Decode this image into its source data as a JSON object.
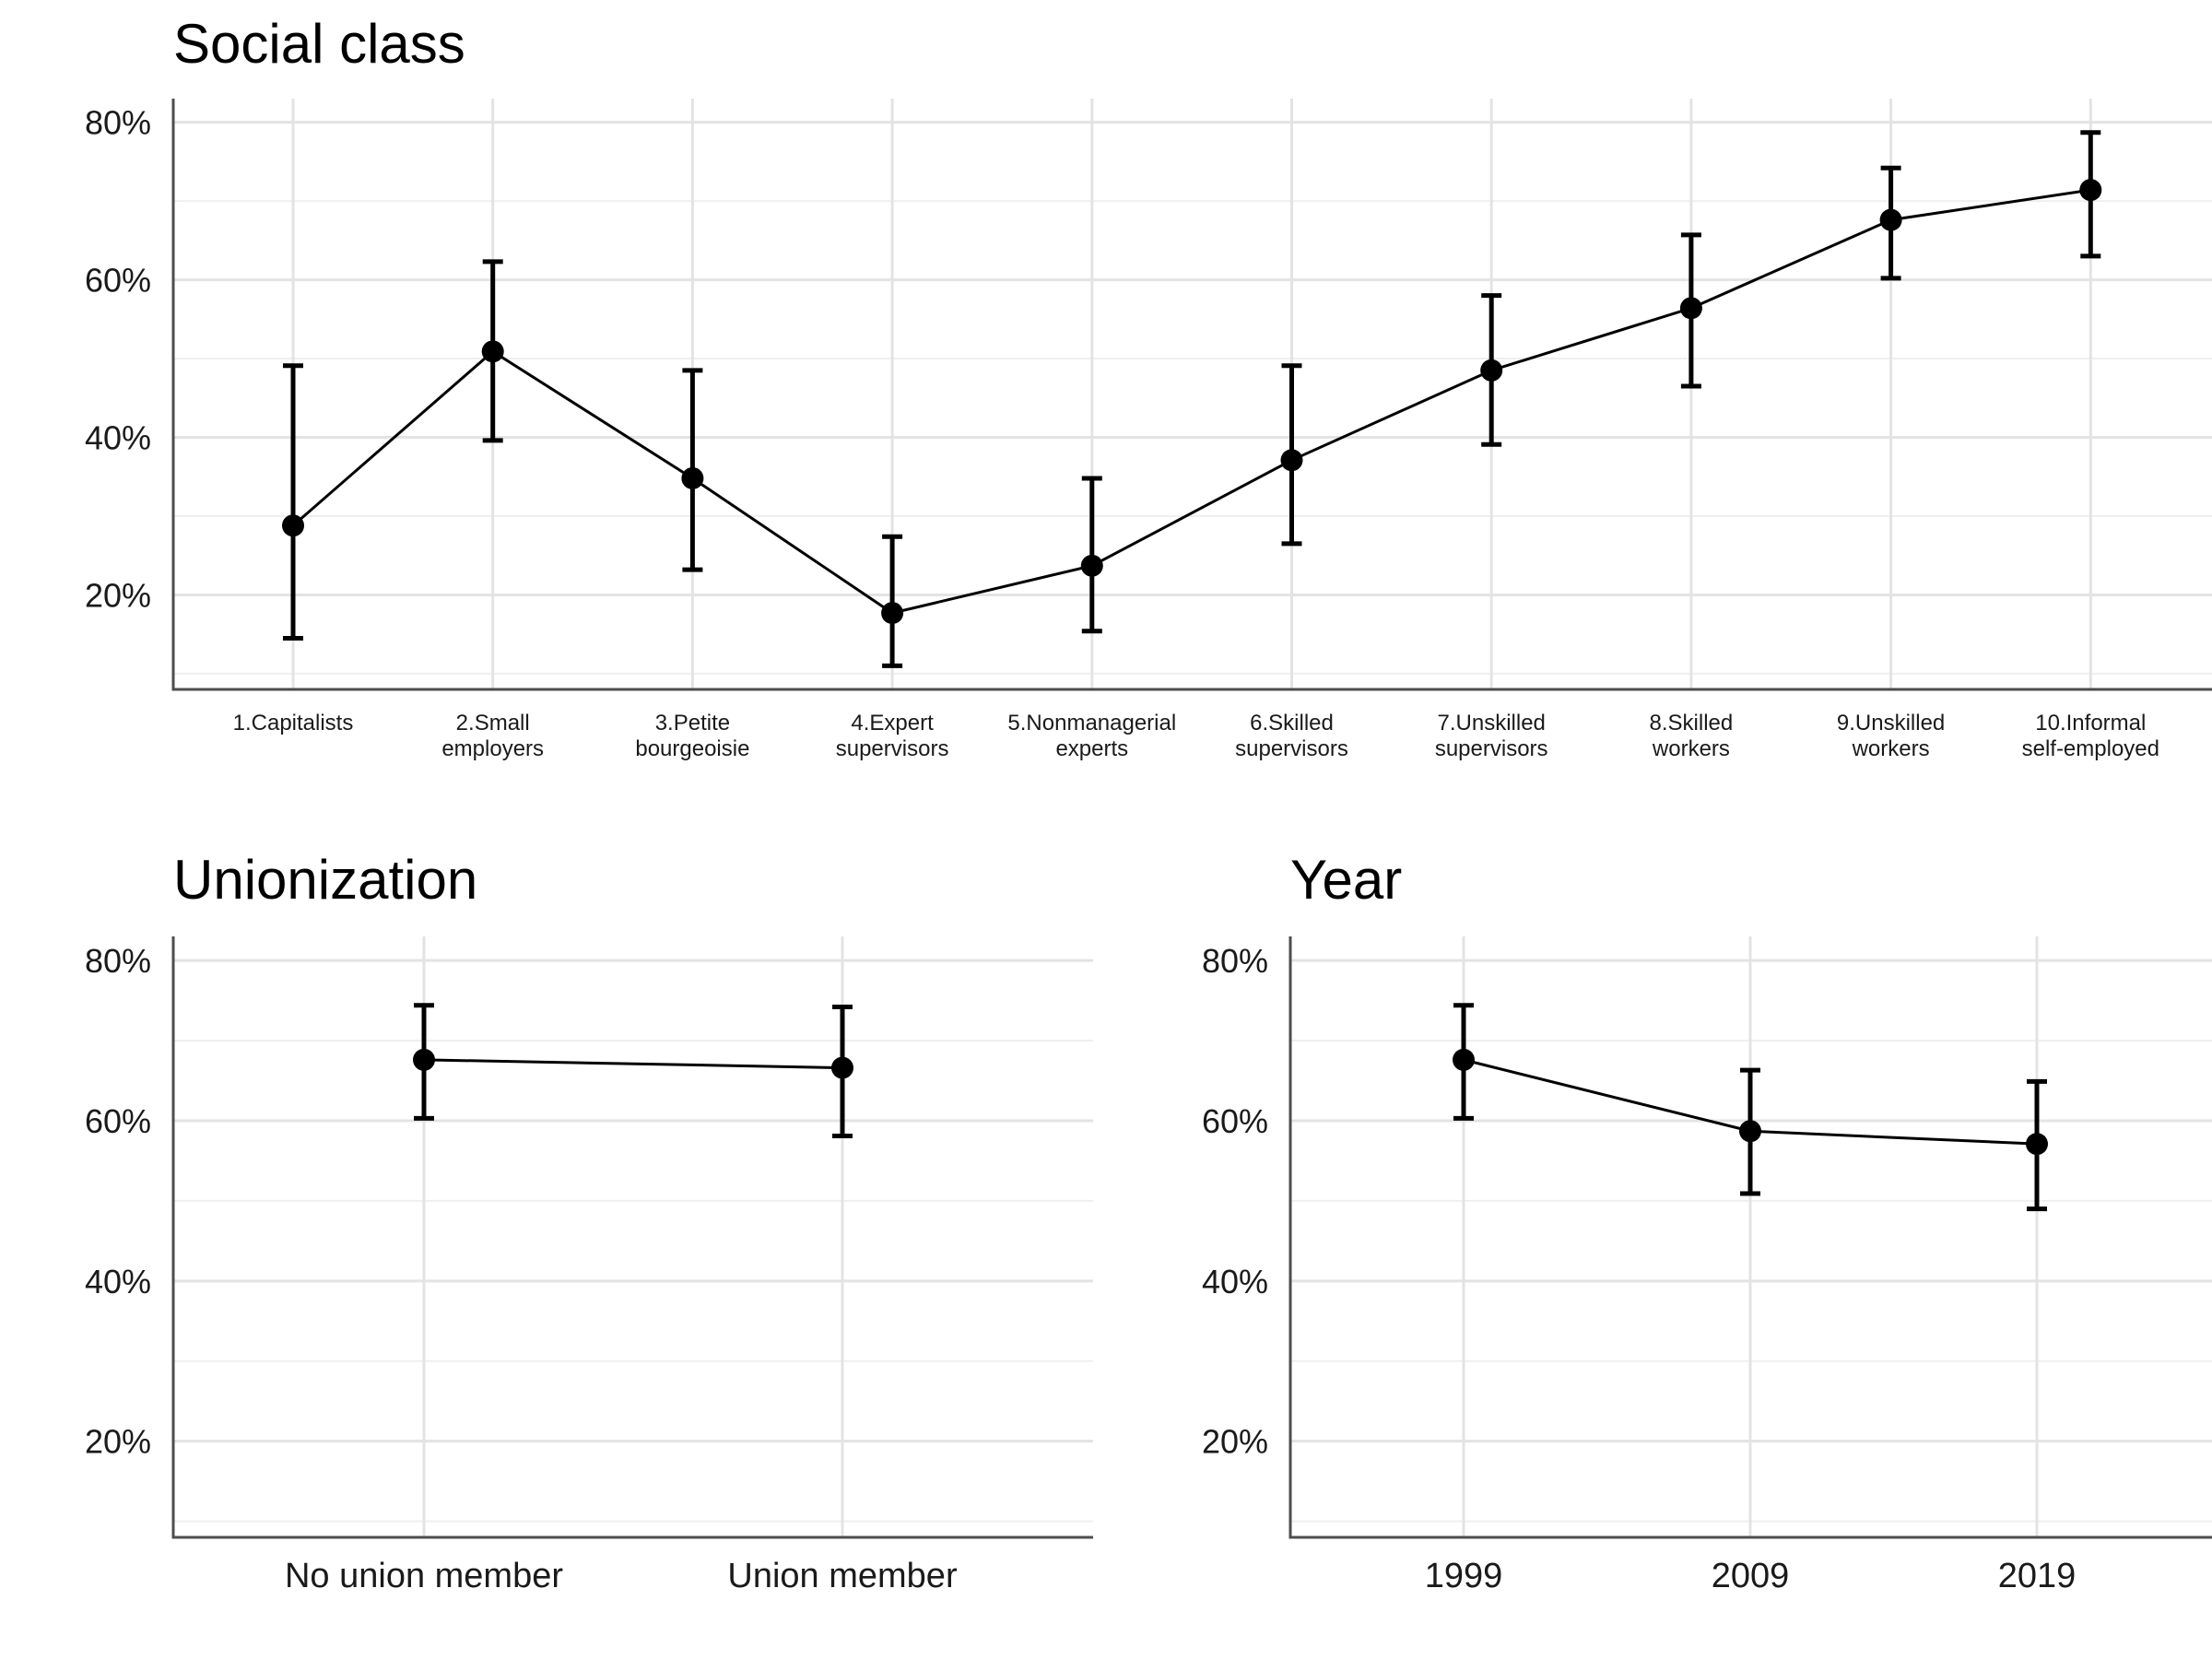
{
  "chart_data": [
    {
      "type": "line",
      "title": "Social class",
      "xlabel": "",
      "ylabel": "",
      "ylim": [
        8,
        83
      ],
      "y_ticks": [
        20,
        40,
        60,
        80
      ],
      "y_tick_labels": [
        "20%",
        "40%",
        "60%",
        "80%"
      ],
      "grid": true,
      "categories": [
        "1.Capitalists",
        "2.Small employers",
        "3.Petite bourgeoisie",
        "4.Expert supervisors",
        "5.Nonmanagerial experts",
        "6.Skilled supervisors",
        "7.Unskilled supervisors",
        "8.Skilled workers",
        "9.Unskilled workers",
        "10.Informal self-employed"
      ],
      "category_lines": [
        [
          "1.Capitalists"
        ],
        [
          "2.Small",
          "employers"
        ],
        [
          "3.Petite",
          "bourgeoisie"
        ],
        [
          "4.Expert",
          "supervisors"
        ],
        [
          "5.Nonmanagerial",
          "experts"
        ],
        [
          "6.Skilled",
          "supervisors"
        ],
        [
          "7.Unskilled",
          "supervisors"
        ],
        [
          "8.Skilled",
          "workers"
        ],
        [
          "9.Unskilled",
          "workers"
        ],
        [
          "10.Informal",
          "self-employed"
        ]
      ],
      "values": [
        28.8,
        50.9,
        34.8,
        17.7,
        23.7,
        37.1,
        48.5,
        56.4,
        67.6,
        71.4
      ],
      "lower": [
        14.5,
        39.6,
        23.2,
        11.0,
        15.4,
        26.5,
        39.1,
        46.5,
        60.2,
        63.0
      ],
      "upper": [
        49.1,
        62.3,
        48.5,
        27.4,
        34.8,
        49.1,
        58.0,
        65.7,
        74.2,
        78.7
      ]
    },
    {
      "type": "line",
      "title": "Unionization",
      "xlabel": "",
      "ylabel": "",
      "ylim": [
        8,
        83
      ],
      "y_ticks": [
        20,
        40,
        60,
        80
      ],
      "y_tick_labels": [
        "20%",
        "40%",
        "60%",
        "80%"
      ],
      "grid": true,
      "categories": [
        "No union member",
        "Union member"
      ],
      "category_lines": [
        [
          "No union member"
        ],
        [
          "Union member"
        ]
      ],
      "values": [
        67.6,
        66.6
      ],
      "lower": [
        60.3,
        58.1
      ],
      "upper": [
        74.4,
        74.2
      ]
    },
    {
      "type": "line",
      "title": "Year",
      "xlabel": "",
      "ylabel": "",
      "ylim": [
        8,
        83
      ],
      "y_ticks": [
        20,
        40,
        60,
        80
      ],
      "y_tick_labels": [
        "20%",
        "40%",
        "60%",
        "80%"
      ],
      "grid": true,
      "categories": [
        "1999",
        "2009",
        "2019"
      ],
      "category_lines": [
        [
          "1999"
        ],
        [
          "2009"
        ],
        [
          "2019"
        ]
      ],
      "values": [
        67.6,
        58.7,
        57.1
      ],
      "lower": [
        60.3,
        50.9,
        49.0
      ],
      "upper": [
        74.4,
        66.3,
        64.9
      ]
    }
  ]
}
